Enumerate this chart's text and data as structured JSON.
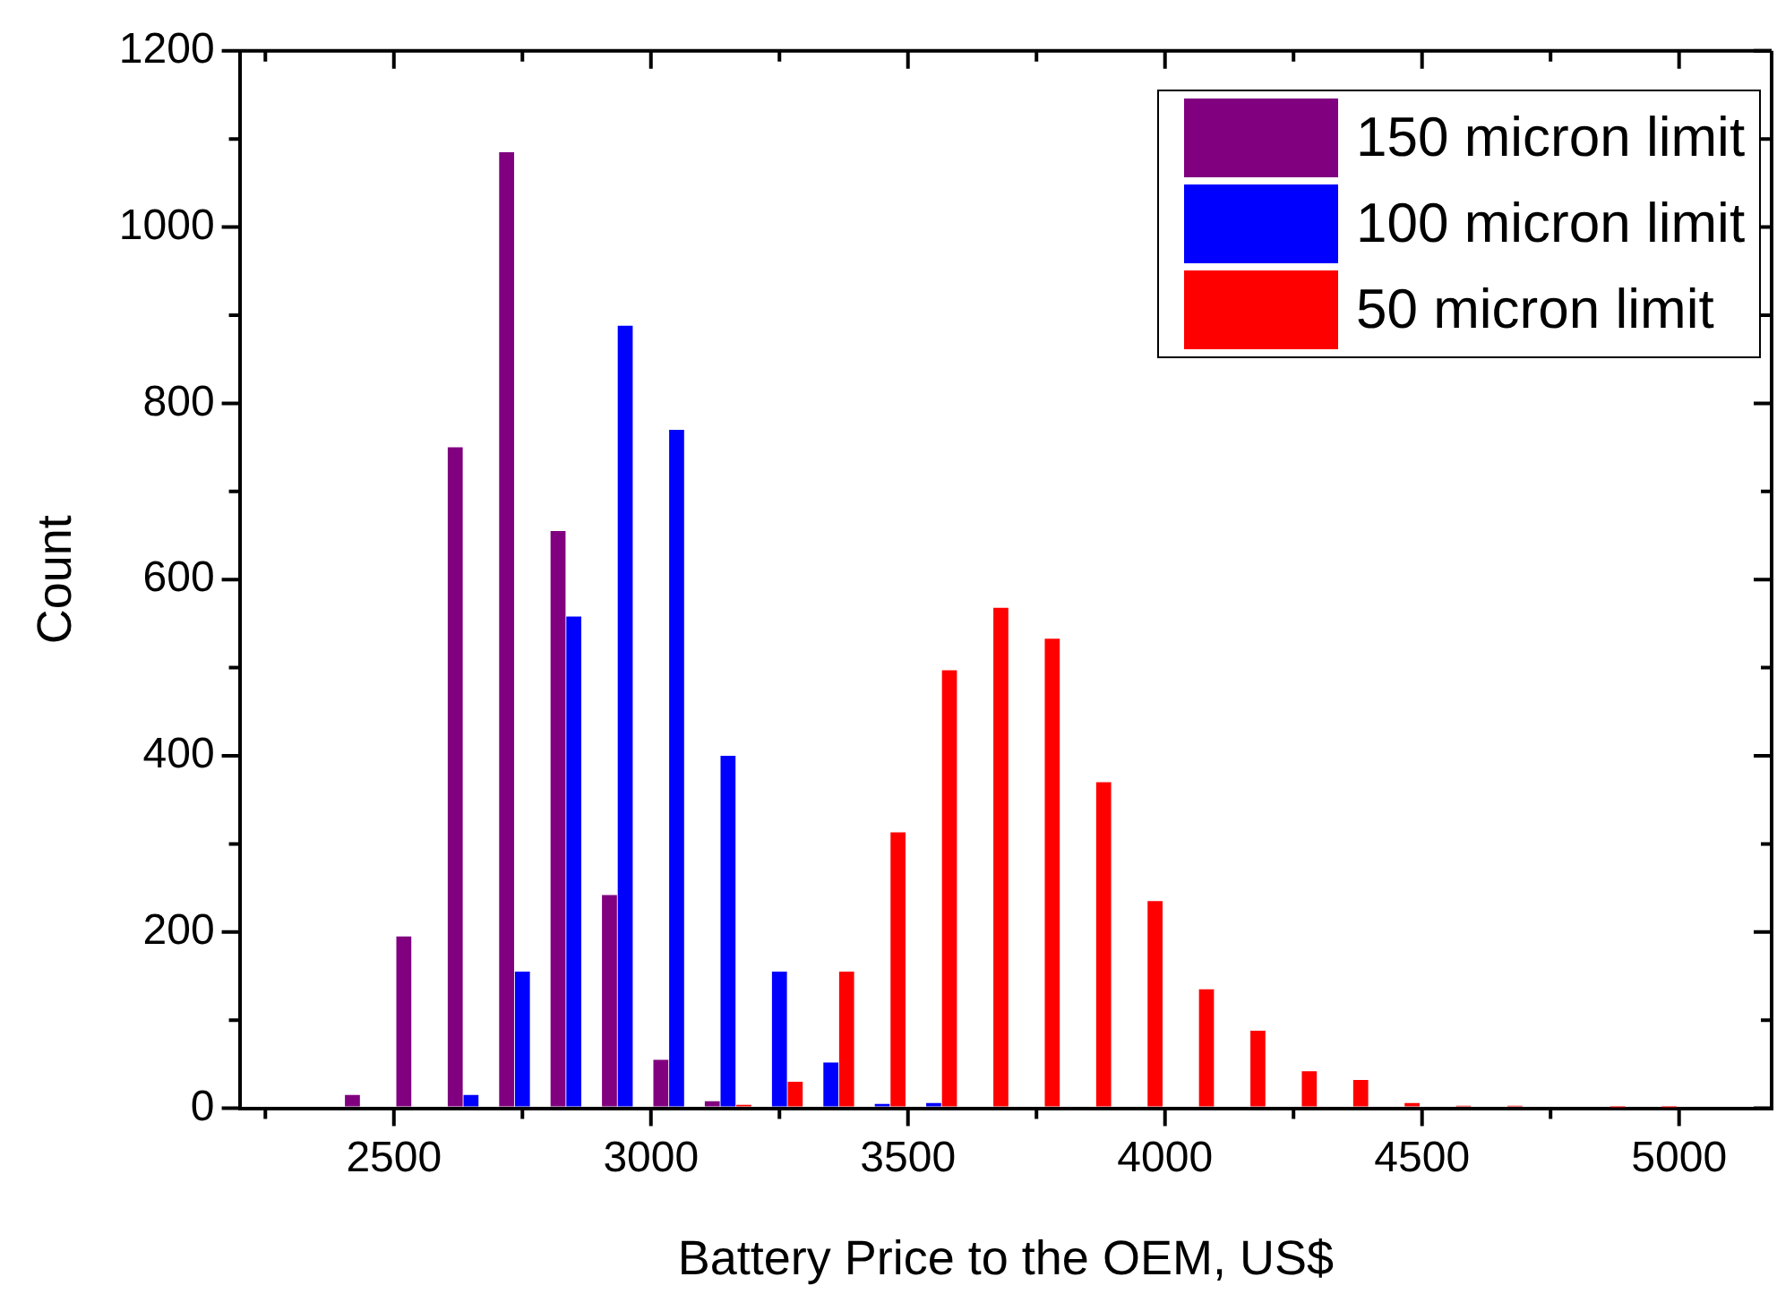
{
  "chart_data": {
    "type": "histogram",
    "xlabel": "Battery Price to the OEM, US$",
    "ylabel": "Count",
    "bins": [
      2400,
      2500,
      2600,
      2700,
      2800,
      2900,
      3000,
      3100,
      3200,
      3300,
      3400,
      3500,
      3600,
      3700,
      3800,
      3900,
      4000,
      4100,
      4200,
      4300,
      4400,
      4500,
      4600,
      4700,
      4800,
      4900,
      5000
    ],
    "series": [
      {
        "name": "150 micron limit",
        "color": "#800080",
        "values": [
          15,
          195,
          750,
          1085,
          655,
          242,
          55,
          8,
          0,
          0,
          0,
          0,
          0,
          0,
          0,
          0,
          0,
          0,
          0,
          0,
          0,
          0,
          0,
          0,
          0,
          0
        ]
      },
      {
        "name": "100 micron limit",
        "color": "#0000ff",
        "values": [
          0,
          null,
          15,
          155,
          558,
          888,
          770,
          400,
          155,
          52,
          5,
          6,
          0,
          0,
          0,
          0,
          0,
          0,
          0,
          0,
          0,
          0,
          0,
          0,
          0,
          0
        ]
      },
      {
        "name": "50 micron limit",
        "color": "#ff0000",
        "values": [
          0,
          0,
          0,
          0,
          0,
          0,
          null,
          4,
          30,
          155,
          313,
          497,
          568,
          533,
          370,
          235,
          135,
          88,
          42,
          32,
          6,
          3,
          3,
          0,
          1,
          1
        ]
      }
    ],
    "xlim": [
      2200,
      5180
    ],
    "xticks": [
      {
        "value": 2250,
        "label": null
      },
      2500,
      {
        "value": 2750,
        "label": null
      },
      3000,
      {
        "value": 3250,
        "label": null
      },
      3500,
      {
        "value": 3750,
        "label": null
      },
      4000,
      {
        "value": 4250,
        "label": null
      },
      4500,
      {
        "value": 4750,
        "label": null
      },
      5000
    ],
    "ylim": [
      0,
      1200
    ],
    "yticks": [
      0,
      {
        "value": 100,
        "label": null
      },
      200,
      {
        "value": 300,
        "label": null
      },
      400,
      {
        "value": 500,
        "label": null
      },
      600,
      {
        "value": 700,
        "label": null
      },
      800,
      {
        "value": 900,
        "label": null
      },
      1000,
      {
        "value": 1100,
        "label": null
      },
      1200
    ],
    "legend": "top right",
    "grid": false
  }
}
